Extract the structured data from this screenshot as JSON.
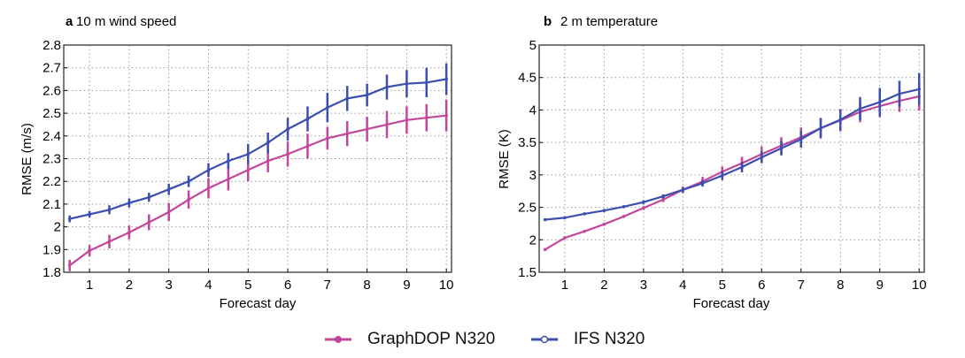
{
  "colors": {
    "graphdop": "#c4469c",
    "ifs": "#3c4fb0"
  },
  "legend": [
    {
      "label": "GraphDOP N320",
      "marker": "filled-circle",
      "color": "#c4469c"
    },
    {
      "label": "IFS N320",
      "marker": "open-circle",
      "color": "#3c4fb0"
    }
  ],
  "chart_data": [
    {
      "type": "line",
      "panel": "a",
      "title": "10 m wind speed",
      "xlabel": "Forecast day",
      "ylabel": "RMSE (m/s)",
      "xlim": [
        0.35,
        10.13
      ],
      "ylim": [
        1.8,
        2.8
      ],
      "xticks": [
        1,
        2,
        3,
        4,
        5,
        6,
        7,
        8,
        9,
        10
      ],
      "yticks": [
        1.8,
        1.9,
        2,
        2.1,
        2.2,
        2.3,
        2.4,
        2.5,
        2.6,
        2.7,
        2.8
      ],
      "ytick_labels": [
        "1.8",
        "1.9",
        "2",
        "2.1",
        "2.2",
        "2.3",
        "2.4",
        "2.5",
        "2.6",
        "2.7",
        "2.8"
      ],
      "grid": true,
      "x": [
        0.5,
        1,
        1.5,
        2,
        2.5,
        3,
        3.5,
        4,
        4.5,
        5,
        5.5,
        6,
        6.5,
        7,
        7.5,
        8,
        8.5,
        9,
        9.5,
        10
      ],
      "series": [
        {
          "name": "GraphDOP N320",
          "values": [
            1.83,
            1.895,
            1.935,
            1.975,
            2.02,
            2.065,
            2.12,
            2.17,
            2.21,
            2.25,
            2.29,
            2.32,
            2.355,
            2.39,
            2.41,
            2.43,
            2.45,
            2.47,
            2.48,
            2.49
          ],
          "errors": [
            0.025,
            0.025,
            0.03,
            0.03,
            0.035,
            0.04,
            0.04,
            0.045,
            0.05,
            0.05,
            0.05,
            0.055,
            0.055,
            0.05,
            0.055,
            0.055,
            0.06,
            0.06,
            0.06,
            0.07
          ]
        },
        {
          "name": "IFS N320",
          "values": [
            2.035,
            2.055,
            2.075,
            2.105,
            2.13,
            2.165,
            2.2,
            2.25,
            2.29,
            2.32,
            2.37,
            2.43,
            2.475,
            2.525,
            2.565,
            2.58,
            2.615,
            2.63,
            2.635,
            2.65
          ],
          "errors": [
            0.015,
            0.015,
            0.02,
            0.02,
            0.02,
            0.025,
            0.025,
            0.03,
            0.035,
            0.045,
            0.045,
            0.05,
            0.055,
            0.065,
            0.055,
            0.05,
            0.055,
            0.06,
            0.065,
            0.07
          ]
        }
      ]
    },
    {
      "type": "line",
      "panel": "b",
      "title": "2 m temperature",
      "xlabel": "Forecast day",
      "ylabel": "RMSE (K)",
      "xlim": [
        0.35,
        10.13
      ],
      "ylim": [
        1.5,
        5
      ],
      "xticks": [
        1,
        2,
        3,
        4,
        5,
        6,
        7,
        8,
        9,
        10
      ],
      "yticks": [
        1.5,
        2,
        2.5,
        3,
        3.5,
        4,
        4.5,
        5
      ],
      "ytick_labels": [
        "1.5",
        "2",
        "2.5",
        "3",
        "3.5",
        "4",
        "4.5",
        "5"
      ],
      "grid": true,
      "x": [
        0.5,
        1,
        1.5,
        2,
        2.5,
        3,
        3.5,
        4,
        4.5,
        5,
        5.5,
        6,
        6.5,
        7,
        7.5,
        8,
        8.5,
        9,
        9.5,
        10
      ],
      "series": [
        {
          "name": "GraphDOP N320",
          "values": [
            1.85,
            2.03,
            2.13,
            2.24,
            2.36,
            2.49,
            2.62,
            2.77,
            2.9,
            3.05,
            3.18,
            3.32,
            3.45,
            3.58,
            3.72,
            3.84,
            3.97,
            4.06,
            4.14,
            4.21
          ],
          "errors": [
            0.02,
            0.02,
            0.02,
            0.02,
            0.02,
            0.03,
            0.04,
            0.05,
            0.07,
            0.08,
            0.1,
            0.12,
            0.13,
            0.15,
            0.16,
            0.17,
            0.16,
            0.17,
            0.17,
            0.22
          ]
        },
        {
          "name": "IFS N320",
          "values": [
            2.31,
            2.34,
            2.4,
            2.45,
            2.51,
            2.58,
            2.67,
            2.77,
            2.87,
            2.99,
            3.12,
            3.27,
            3.41,
            3.55,
            3.72,
            3.85,
            4.02,
            4.12,
            4.25,
            4.32
          ],
          "errors": [
            0.02,
            0.02,
            0.02,
            0.02,
            0.02,
            0.03,
            0.03,
            0.04,
            0.05,
            0.07,
            0.08,
            0.09,
            0.11,
            0.13,
            0.15,
            0.16,
            0.18,
            0.22,
            0.2,
            0.25
          ]
        }
      ]
    }
  ]
}
